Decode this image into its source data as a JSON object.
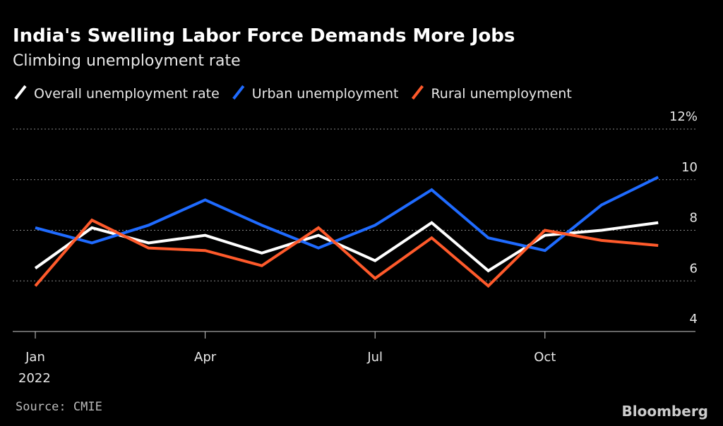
{
  "chart_data": {
    "type": "line",
    "title": "India's Swelling Labor Force Demands More Jobs",
    "subtitle": "Climbing unemployment rate",
    "categories": [
      "Jan",
      null,
      null,
      "Apr",
      null,
      null,
      "Jul",
      null,
      null,
      "Oct",
      null,
      null
    ],
    "year_label": "2022",
    "series": [
      {
        "name": "Overall unemployment rate",
        "color": "#ffffff",
        "values": [
          6.5,
          8.1,
          7.5,
          7.8,
          7.1,
          7.8,
          6.8,
          8.3,
          6.4,
          7.8,
          8.0,
          8.3
        ]
      },
      {
        "name": "Urban unemployment",
        "color": "#1f6bff",
        "values": [
          8.1,
          7.5,
          8.2,
          9.2,
          8.2,
          7.3,
          8.2,
          9.6,
          7.7,
          7.2,
          9.0,
          10.1
        ]
      },
      {
        "name": "Rural unemployment",
        "color": "#ff5a2b",
        "values": [
          5.8,
          8.4,
          7.3,
          7.2,
          6.6,
          8.1,
          6.1,
          7.7,
          5.8,
          8.0,
          7.6,
          7.4
        ]
      }
    ],
    "ylim": [
      4,
      12
    ],
    "yticks": [
      4,
      6,
      8,
      10,
      {
        "value": 12,
        "label": "12%"
      }
    ],
    "grid": true,
    "source": "Source: CMIE",
    "brand": "Bloomberg"
  }
}
